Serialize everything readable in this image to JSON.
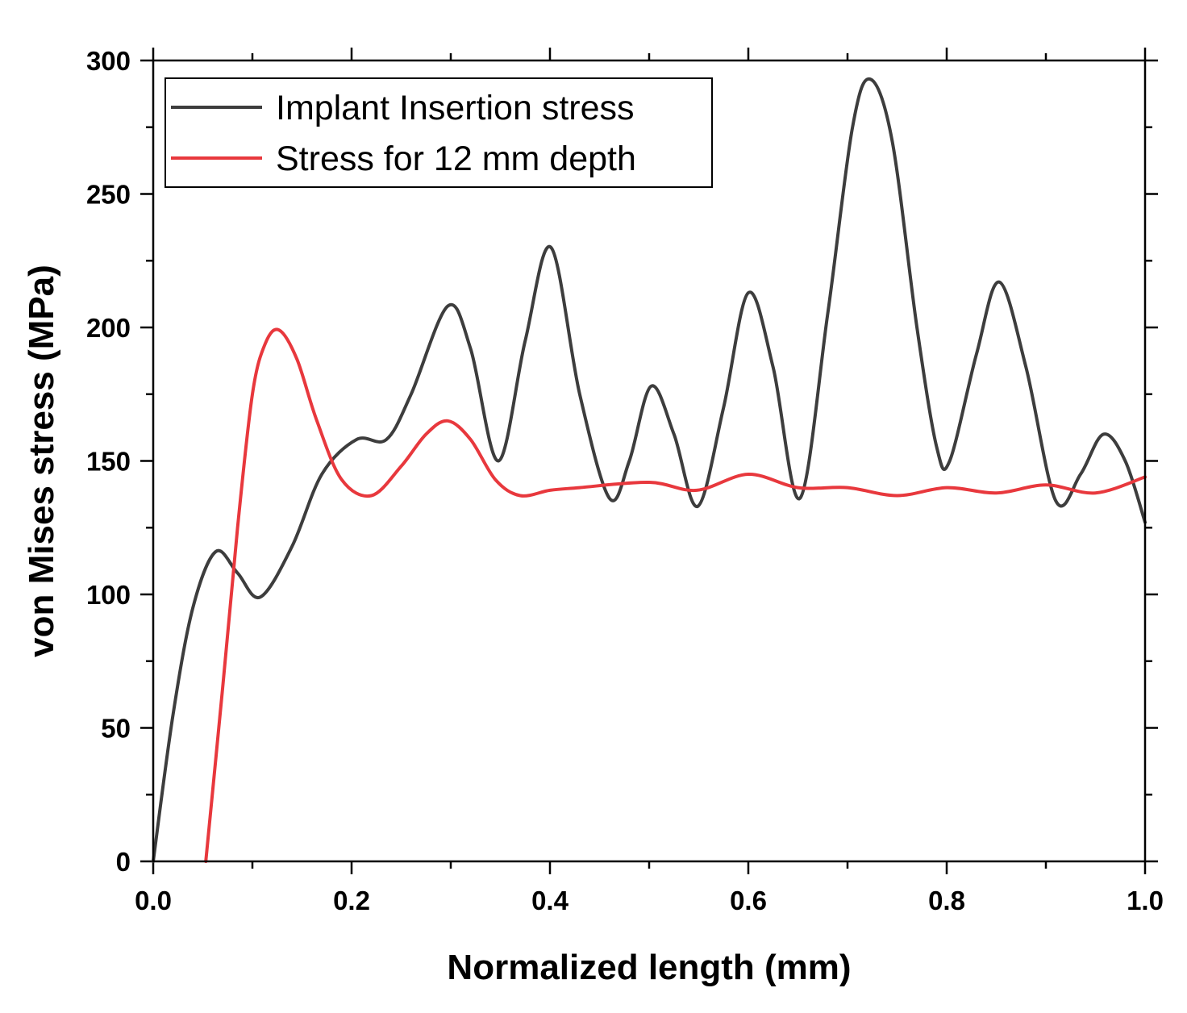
{
  "chart_data": {
    "type": "line",
    "xlabel": "Normalized length (mm)",
    "ylabel": "von Mises stress (MPa)",
    "xlim": [
      0,
      1
    ],
    "ylim": [
      0,
      300
    ],
    "x_ticks": [
      "0.0",
      "0.2",
      "0.4",
      "0.6",
      "0.8",
      "1.0"
    ],
    "x_tick_values": [
      0,
      0.2,
      0.4,
      0.6,
      0.8,
      1.0
    ],
    "y_ticks": [
      "0",
      "50",
      "100",
      "150",
      "200",
      "250",
      "300"
    ],
    "y_tick_values": [
      0,
      50,
      100,
      150,
      200,
      250,
      300
    ],
    "grid": false,
    "legend_position": "top-left",
    "series": [
      {
        "name": "Implant Insertion stress",
        "color": "#3d3d3d",
        "x": [
          0,
          0.02,
          0.04,
          0.063,
          0.085,
          0.108,
          0.14,
          0.17,
          0.205,
          0.235,
          0.26,
          0.297,
          0.32,
          0.348,
          0.375,
          0.401,
          0.43,
          0.46,
          0.48,
          0.502,
          0.525,
          0.549,
          0.575,
          0.6,
          0.625,
          0.652,
          0.68,
          0.705,
          0.723,
          0.745,
          0.77,
          0.79,
          0.803,
          0.83,
          0.853,
          0.88,
          0.91,
          0.935,
          0.958,
          0.98,
          1.0
        ],
        "y": [
          0,
          55,
          95,
          116,
          108,
          99,
          118,
          145,
          158,
          158,
          175,
          208,
          192,
          150,
          195,
          230,
          175,
          136,
          150,
          178,
          160,
          133,
          170,
          213,
          185,
          136,
          205,
          275,
          293,
          270,
          200,
          155,
          150,
          190,
          217,
          185,
          135,
          145,
          160,
          150,
          127
        ]
      },
      {
        "name": "Stress for 12 mm depth",
        "color": "#e8383d",
        "x": [
          0.053,
          0.07,
          0.085,
          0.1,
          0.113,
          0.127,
          0.145,
          0.165,
          0.19,
          0.22,
          0.25,
          0.275,
          0.297,
          0.32,
          0.345,
          0.37,
          0.4,
          0.43,
          0.5,
          0.548,
          0.6,
          0.65,
          0.7,
          0.75,
          0.8,
          0.85,
          0.9,
          0.95,
          1.0
        ],
        "y": [
          0,
          65,
          125,
          175,
          194,
          199,
          188,
          165,
          143,
          137,
          148,
          160,
          165,
          158,
          143,
          137,
          139,
          140,
          142,
          139,
          145,
          140,
          140,
          137,
          140,
          138,
          141,
          138,
          144
        ]
      }
    ]
  }
}
